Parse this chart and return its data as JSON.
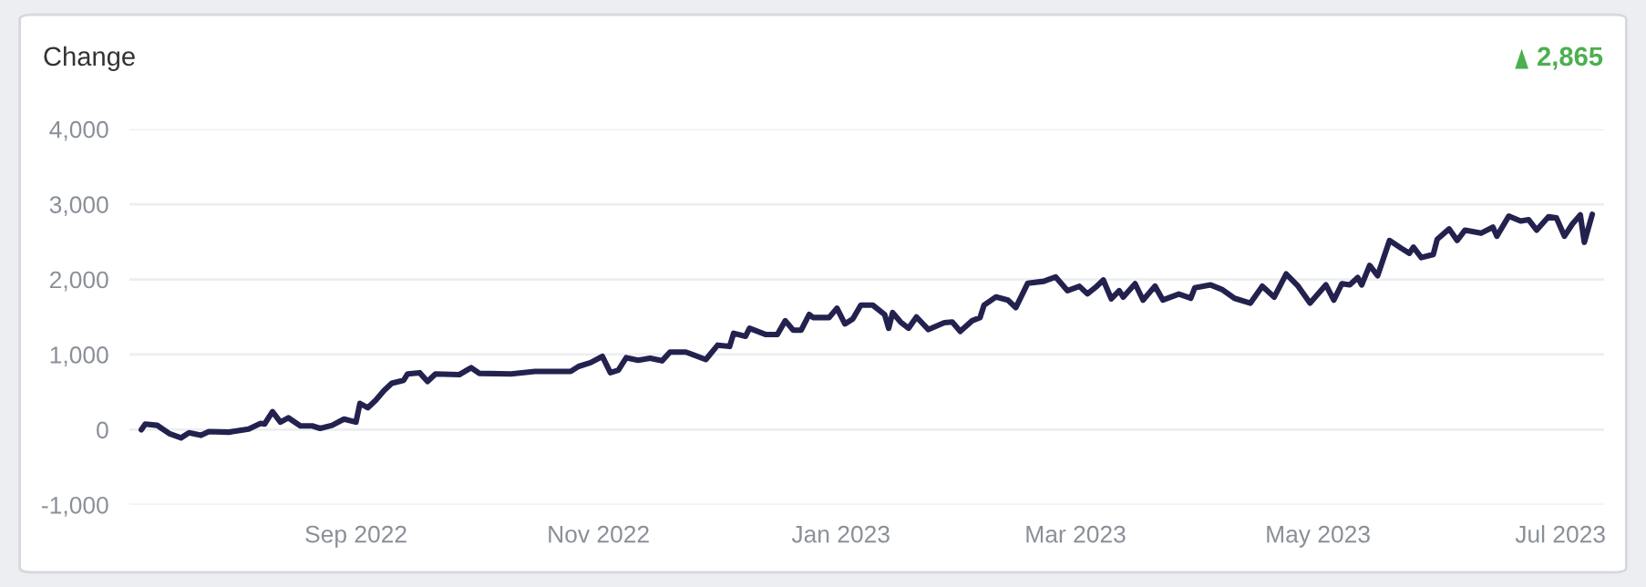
{
  "chart_data": {
    "type": "line",
    "title": "Change",
    "annotations": [
      "2,865"
    ],
    "x": [
      "2022-07-09",
      "2022-07-10",
      "2022-07-13",
      "2022-07-16",
      "2022-07-19",
      "2022-07-21",
      "2022-07-24",
      "2022-07-26",
      "2022-07-31",
      "2022-08-05",
      "2022-08-08",
      "2022-08-09",
      "2022-08-11",
      "2022-08-13",
      "2022-08-15",
      "2022-08-18",
      "2022-08-21",
      "2022-08-23",
      "2022-08-26",
      "2022-08-29",
      "2022-09-01",
      "2022-09-02",
      "2022-09-04",
      "2022-09-06",
      "2022-09-08",
      "2022-09-10",
      "2022-09-13",
      "2022-09-14",
      "2022-09-17",
      "2022-09-19",
      "2022-09-21",
      "2022-09-27",
      "2022-09-30",
      "2022-10-02",
      "2022-10-10",
      "2022-10-16",
      "2022-10-25",
      "2022-10-27",
      "2022-10-30",
      "2022-11-02",
      "2022-11-04",
      "2022-11-06",
      "2022-11-08",
      "2022-11-11",
      "2022-11-14",
      "2022-11-17",
      "2022-11-19",
      "2022-11-23",
      "2022-11-28",
      "2022-12-01",
      "2022-12-04",
      "2022-12-05",
      "2022-12-08",
      "2022-12-09",
      "2022-12-13",
      "2022-12-16",
      "2022-12-18",
      "2022-12-20",
      "2022-12-22",
      "2022-12-24",
      "2022-12-25",
      "2022-12-29",
      "2022-12-31",
      "2023-01-02",
      "2023-01-04",
      "2023-01-06",
      "2023-01-09",
      "2023-01-12",
      "2023-01-13",
      "2023-01-14",
      "2023-01-16",
      "2023-01-18",
      "2023-01-20",
      "2023-01-23",
      "2023-01-27",
      "2023-01-29",
      "2023-01-31",
      "2023-02-03",
      "2023-02-05",
      "2023-02-06",
      "2023-02-09",
      "2023-02-12",
      "2023-02-14",
      "2023-02-17",
      "2023-02-21",
      "2023-02-24",
      "2023-02-27",
      "2023-03-02",
      "2023-03-04",
      "2023-03-06",
      "2023-03-08",
      "2023-03-10",
      "2023-03-12",
      "2023-03-13",
      "2023-03-16",
      "2023-03-18",
      "2023-03-21",
      "2023-03-23",
      "2023-03-27",
      "2023-03-30",
      "2023-03-31",
      "2023-04-04",
      "2023-04-07",
      "2023-04-10",
      "2023-04-14",
      "2023-04-17",
      "2023-04-20",
      "2023-04-23",
      "2023-04-26",
      "2023-04-29",
      "2023-05-03",
      "2023-05-05",
      "2023-05-07",
      "2023-05-09",
      "2023-05-11",
      "2023-05-12",
      "2023-05-14",
      "2023-05-16",
      "2023-05-19",
      "2023-05-22",
      "2023-05-24",
      "2023-05-25",
      "2023-05-27",
      "2023-05-30",
      "2023-05-31",
      "2023-06-03",
      "2023-06-05",
      "2023-06-07",
      "2023-06-11",
      "2023-06-14",
      "2023-06-15",
      "2023-06-18",
      "2023-06-21",
      "2023-06-23",
      "2023-06-25",
      "2023-06-28",
      "2023-06-30",
      "2023-07-02",
      "2023-07-04",
      "2023-07-06",
      "2023-07-07",
      "2023-07-09"
    ],
    "series": [
      {
        "color": "#23224f",
        "values": [
          0,
          75,
          58,
          -50,
          -108,
          -40,
          -75,
          -25,
          -33,
          8,
          83,
          75,
          240,
          100,
          158,
          50,
          50,
          17,
          58,
          142,
          100,
          350,
          292,
          392,
          517,
          617,
          658,
          742,
          758,
          642,
          742,
          733,
          825,
          750,
          742,
          775,
          775,
          842,
          892,
          975,
          758,
          792,
          958,
          925,
          950,
          917,
          1033,
          1033,
          933,
          1125,
          1108,
          1283,
          1242,
          1350,
          1267,
          1267,
          1450,
          1325,
          1325,
          1533,
          1492,
          1492,
          1617,
          1408,
          1475,
          1658,
          1658,
          1533,
          1350,
          1558,
          1433,
          1350,
          1500,
          1333,
          1425,
          1433,
          1308,
          1450,
          1492,
          1658,
          1767,
          1725,
          1625,
          1950,
          1975,
          2033,
          1850,
          1908,
          1808,
          1892,
          1992,
          1742,
          1850,
          1765,
          1943,
          1725,
          1911,
          1725,
          1806,
          1749,
          1887,
          1927,
          1862,
          1749,
          1684,
          1911,
          1765,
          2073,
          1911,
          1684,
          1927,
          1725,
          1943,
          1927,
          2024,
          1927,
          2186,
          2049,
          2518,
          2413,
          2348,
          2429,
          2291,
          2332,
          2534,
          2672,
          2518,
          2656,
          2615,
          2696,
          2575,
          2842,
          2777,
          2794,
          2656,
          2834,
          2818,
          2575,
          2737,
          2858,
          2494,
          2865
        ]
      }
    ],
    "xlim": [
      "2022-07-06",
      "2023-07-12"
    ],
    "xticks": [
      {
        "value": "2022-09-01",
        "label": "Sep 2022"
      },
      {
        "value": "2022-11-01",
        "label": "Nov 2022"
      },
      {
        "value": "2023-01-01",
        "label": "Jan 2023"
      },
      {
        "value": "2023-03-01",
        "label": "Mar 2023"
      },
      {
        "value": "2023-05-01",
        "label": "May 2023"
      },
      {
        "value": "2023-07-01",
        "label": "Jul 2023"
      }
    ],
    "ylim": [
      -1000,
      4000
    ],
    "yticks": [
      {
        "value": -1000,
        "label": "-1,000"
      },
      {
        "value": 0,
        "label": "0"
      },
      {
        "value": 1000,
        "label": "1,000"
      },
      {
        "value": 2000,
        "label": "2,000"
      },
      {
        "value": 3000,
        "label": "3,000"
      },
      {
        "value": 4000,
        "label": "4,000"
      }
    ],
    "grid": "y",
    "legend": false,
    "marker": "none",
    "line_style": "solid"
  }
}
